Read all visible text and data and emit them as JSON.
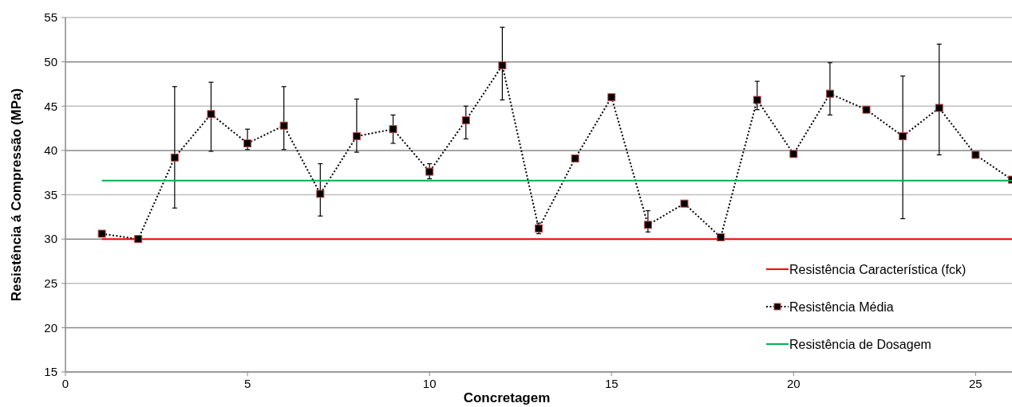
{
  "chart_data": {
    "type": "line",
    "xlabel": "Concretagem",
    "ylabel": "Resistência á Compressão  (MPa)",
    "xlim": [
      0,
      26
    ],
    "ylim": [
      15,
      55
    ],
    "xticks": [
      0,
      5,
      10,
      15,
      20,
      25
    ],
    "yticks": [
      15,
      20,
      25,
      30,
      35,
      40,
      45,
      50,
      55
    ],
    "grid": "y",
    "legend": "bottom right",
    "series": [
      {
        "name": "Resistência Característica (fck)",
        "color": "#ff0000",
        "x": [
          1,
          26
        ],
        "values": [
          30,
          30
        ],
        "marker": "none",
        "line_style": "solid"
      },
      {
        "name": "Resistência Média",
        "color": "#000000",
        "x": [
          1,
          2,
          3,
          4,
          5,
          6,
          7,
          8,
          9,
          10,
          11,
          12,
          13,
          14,
          15,
          16,
          17,
          18,
          19,
          20,
          21,
          22,
          23,
          24,
          25,
          26
        ],
        "values": [
          30.6,
          30.0,
          39.2,
          44.1,
          40.8,
          42.8,
          35.1,
          41.6,
          42.4,
          37.6,
          43.4,
          49.6,
          31.2,
          39.1,
          46.0,
          31.6,
          34.0,
          30.2,
          45.7,
          39.6,
          46.4,
          44.6,
          41.6,
          44.8,
          39.5,
          36.7
        ],
        "errors": [
          null,
          null,
          [
            33.5,
            47.2
          ],
          [
            39.9,
            47.7
          ],
          [
            40.1,
            42.4
          ],
          [
            40.1,
            47.2
          ],
          [
            32.6,
            38.5
          ],
          [
            39.8,
            45.8
          ],
          [
            40.8,
            44.0
          ],
          [
            36.8,
            38.5
          ],
          [
            41.3,
            45.0
          ],
          [
            45.7,
            53.9
          ],
          [
            30.6,
            31.8
          ],
          null,
          null,
          [
            30.8,
            33.2
          ],
          null,
          null,
          [
            44.6,
            47.8
          ],
          null,
          [
            44.0,
            49.9
          ],
          null,
          [
            32.3,
            48.4
          ],
          [
            39.5,
            52.0
          ],
          null,
          null
        ],
        "marker": "square",
        "line_style": "dotted"
      },
      {
        "name": "Resistência de Dosagem",
        "color": "#00b050",
        "x": [
          1,
          26
        ],
        "values": [
          36.6,
          36.6
        ],
        "marker": "none",
        "line_style": "solid"
      }
    ]
  }
}
